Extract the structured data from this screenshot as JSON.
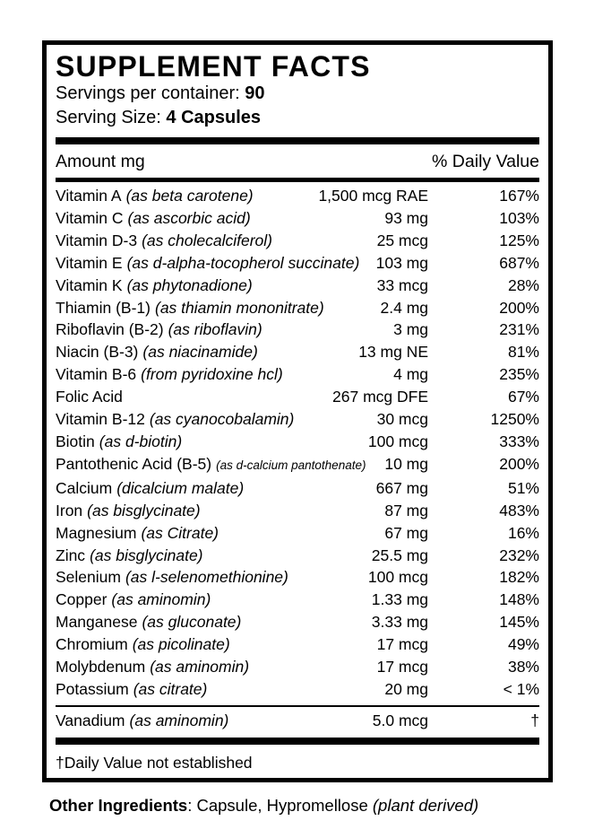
{
  "panel": {
    "title": "SUPPLEMENT FACTS",
    "servings_label": "Servings per container: ",
    "servings_value": "90",
    "serving_size_label": "Serving Size: ",
    "serving_size_value": "4 Capsules",
    "column_header_left": "Amount mg",
    "column_header_right": "% Daily Value",
    "rows": [
      {
        "name": "Vitamin A",
        "note": "(as beta carotene)",
        "small": false,
        "amount": "1,500 mcg RAE",
        "dv": "167%"
      },
      {
        "name": "Vitamin C",
        "note": "(as ascorbic acid)",
        "small": false,
        "amount": "93 mg",
        "dv": "103%"
      },
      {
        "name": "Vitamin D-3",
        "note": "(as cholecalciferol)",
        "small": false,
        "amount": "25 mcg",
        "dv": "125%"
      },
      {
        "name": "Vitamin E",
        "note": "(as d-alpha-tocopherol succinate)",
        "small": false,
        "amount": "103 mg",
        "dv": "687%"
      },
      {
        "name": "Vitamin K",
        "note": "(as phytonadione)",
        "small": false,
        "amount": "33 mcg",
        "dv": "28%"
      },
      {
        "name": "Thiamin (B-1)",
        "note": "(as thiamin mononitrate)",
        "small": false,
        "amount": "2.4 mg",
        "dv": "200%"
      },
      {
        "name": "Riboflavin (B-2)",
        "note": "(as riboflavin)",
        "small": false,
        "amount": "3 mg",
        "dv": "231%"
      },
      {
        "name": "Niacin (B-3)",
        "note": "(as niacinamide)",
        "small": false,
        "amount": "13 mg NE",
        "dv": "81%"
      },
      {
        "name": "Vitamin B-6",
        "note": "(from pyridoxine hcl)",
        "small": false,
        "amount": "4 mg",
        "dv": "235%"
      },
      {
        "name": "Folic Acid",
        "note": "",
        "small": false,
        "amount": "267 mcg DFE",
        "dv": "67%"
      },
      {
        "name": "Vitamin B-12",
        "note": "(as cyanocobalamin)",
        "small": false,
        "amount": "30 mcg",
        "dv": "1250%"
      },
      {
        "name": "Biotin",
        "note": "(as d-biotin)",
        "small": false,
        "amount": "100 mcg",
        "dv": "333%"
      },
      {
        "name": "Pantothenic Acid (B-5)",
        "note": "(as d-calcium pantothenate)",
        "small": true,
        "amount": "10 mg",
        "dv": "200%"
      },
      {
        "name": "Calcium",
        "note": "(dicalcium malate)",
        "small": false,
        "amount": "667 mg",
        "dv": "51%"
      },
      {
        "name": "Iron",
        "note": "(as bisglycinate)",
        "small": false,
        "amount": "87 mg",
        "dv": "483%"
      },
      {
        "name": "Magnesium",
        "note": "(as Citrate)",
        "small": false,
        "amount": "67 mg",
        "dv": "16%"
      },
      {
        "name": "Zinc",
        "note": "(as bisglycinate)",
        "small": false,
        "amount": "25.5 mg",
        "dv": "232%"
      },
      {
        "name": "Selenium",
        "note": "(as l-selenomethionine)",
        "small": false,
        "amount": "100 mcg",
        "dv": "182%"
      },
      {
        "name": "Copper",
        "note": "(as aminomin)",
        "small": false,
        "amount": "1.33 mg",
        "dv": "148%"
      },
      {
        "name": "Manganese",
        "note": "(as gluconate)",
        "small": false,
        "amount": "3.33 mg",
        "dv": "145%"
      },
      {
        "name": "Chromium",
        "note": "(as picolinate)",
        "small": false,
        "amount": "17 mcg",
        "dv": "49%"
      },
      {
        "name": "Molybdenum",
        "note": "(as aminomin)",
        "small": false,
        "amount": "17 mcg",
        "dv": "38%"
      },
      {
        "name": "Potassium",
        "note": "(as citrate)",
        "small": false,
        "amount": "20 mg",
        "dv": "< 1%"
      }
    ],
    "vanadium_row": {
      "name": "Vanadium",
      "note": "(as aminomin)",
      "small": false,
      "amount": "5.0 mcg",
      "dv": "†"
    },
    "footnote": "†Daily Value not established"
  },
  "other_ingredients": {
    "label": "Other Ingredients",
    "separator": ": ",
    "text": "Capsule, Hypromellose ",
    "note": "(plant derived)"
  }
}
